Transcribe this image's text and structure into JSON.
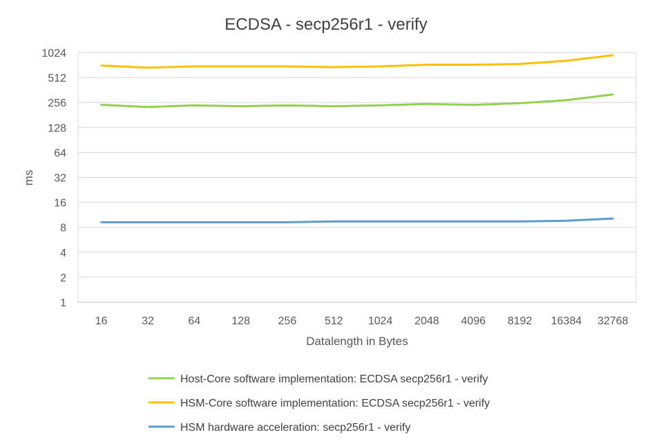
{
  "chart_data": {
    "type": "line",
    "title": "ECDSA - secp256r1 - verify",
    "xlabel": "Datalength in Bytes",
    "ylabel": "ms",
    "y_scale": "log2",
    "ylim": [
      1,
      1024
    ],
    "y_ticks": [
      "1",
      "2",
      "4",
      "8",
      "16",
      "32",
      "64",
      "128",
      "256",
      "512",
      "1024"
    ],
    "categories": [
      "16",
      "32",
      "64",
      "128",
      "256",
      "512",
      "1024",
      "2048",
      "4096",
      "8192",
      "16384",
      "32768"
    ],
    "grid": true,
    "legend_position": "bottom",
    "series": [
      {
        "name": "Host-Core software implementation: ECDSA secp256r1 - verify",
        "color": "#92d050",
        "values": [
          240,
          226,
          236,
          231,
          236,
          231,
          236,
          246,
          240,
          251,
          273,
          320
        ]
      },
      {
        "name": "HSM-Core software implementation: ECDSA secp256r1 - verify",
        "color": "#ffc000",
        "values": [
          714,
          672,
          698,
          698,
          698,
          683,
          698,
          730,
          730,
          746,
          815,
          950
        ]
      },
      {
        "name": "HSM hardware acceleration: secp256r1 - verify",
        "color": "#5b9bd5",
        "values": [
          9.2,
          9.2,
          9.2,
          9.2,
          9.2,
          9.4,
          9.4,
          9.4,
          9.4,
          9.4,
          9.6,
          10.2
        ]
      }
    ]
  }
}
